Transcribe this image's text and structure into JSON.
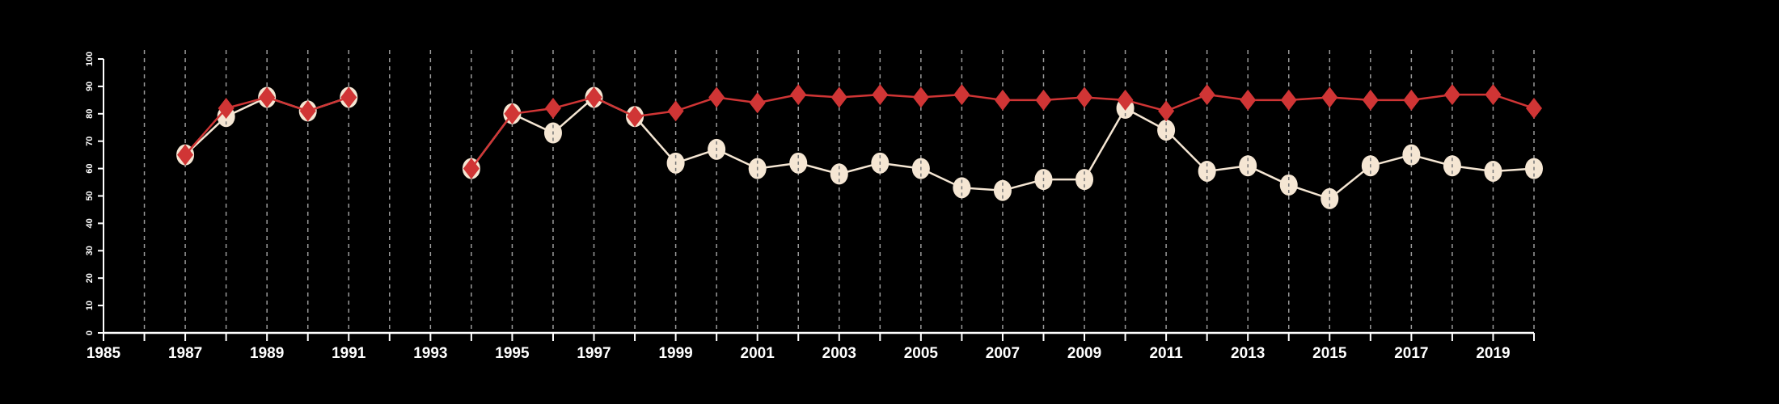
{
  "chart_data": {
    "type": "line",
    "title": "",
    "xlabel": "",
    "ylabel": "",
    "xlim": [
      1985,
      2020
    ],
    "ylim": [
      0,
      100
    ],
    "grid": "vertical dashed at each year",
    "legend": "none",
    "x_tick_labels": [
      "1985",
      "1987",
      "1989",
      "1991",
      "1993",
      "1995",
      "1997",
      "1999",
      "2001",
      "2003",
      "2005",
      "2007",
      "2009",
      "2011",
      "2013",
      "2015",
      "2017",
      "2019"
    ],
    "y_tick_labels": [
      "0",
      "10",
      "20",
      "30",
      "40",
      "50",
      "60",
      "70",
      "80",
      "90",
      "100"
    ],
    "x": [
      1987,
      1988,
      1989,
      1990,
      1991,
      1992,
      1993,
      1994,
      1995,
      1996,
      1997,
      1998,
      1999,
      2000,
      2001,
      2002,
      2003,
      2004,
      2005,
      2006,
      2007,
      2008,
      2009,
      2010,
      2011,
      2012,
      2013,
      2014,
      2015,
      2016,
      2017,
      2018,
      2019,
      2020
    ],
    "series": [
      {
        "name": "cream-circles",
        "color": "#f5e6d3",
        "marker": "circle",
        "values": [
          65,
          79,
          86,
          81,
          86,
          null,
          null,
          60,
          80,
          73,
          86,
          79,
          62,
          67,
          60,
          62,
          58,
          62,
          60,
          53,
          52,
          56,
          56,
          82,
          74,
          59,
          61,
          54,
          49,
          61,
          65,
          61,
          59,
          60
        ]
      },
      {
        "name": "red-diamonds",
        "color": "#d03535",
        "marker": "diamond",
        "values": [
          65,
          82,
          86,
          81,
          86,
          null,
          null,
          60,
          80,
          82,
          86,
          79,
          81,
          86,
          84,
          87,
          86,
          87,
          86,
          87,
          85,
          85,
          86,
          85,
          81,
          87,
          85,
          85,
          86,
          85,
          85,
          87,
          87,
          82
        ]
      }
    ]
  }
}
